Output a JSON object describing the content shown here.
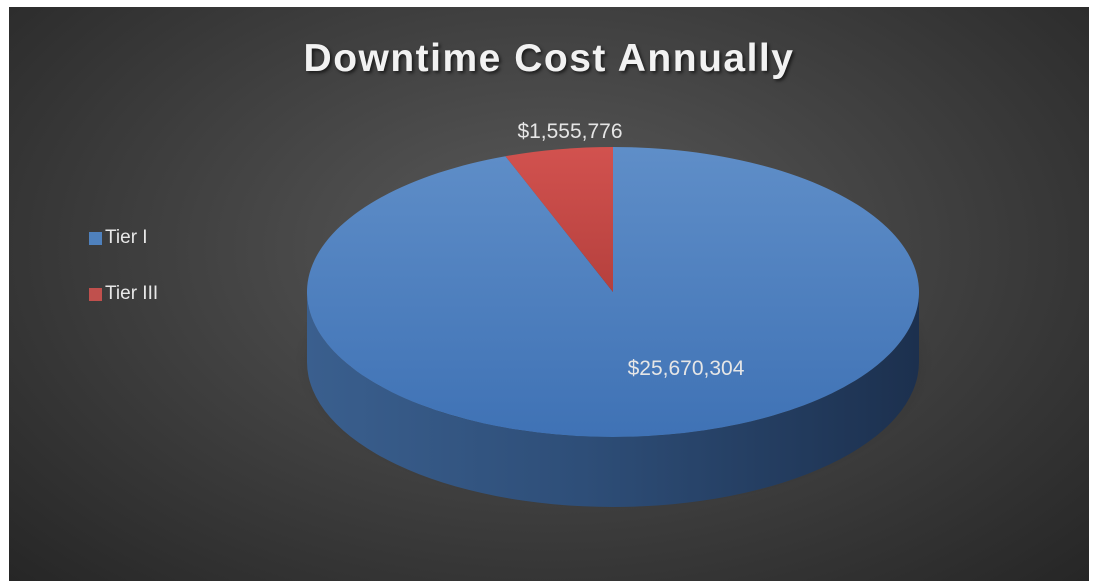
{
  "chart_data": {
    "type": "pie",
    "title": "Downtime Cost Annually",
    "categories": [
      "Tier I",
      "Tier III"
    ],
    "values": [
      25670304,
      1555776
    ],
    "value_labels": [
      "$25,670,304",
      "$1,555,776"
    ],
    "colors": [
      "#4f81bd",
      "#c0504d"
    ],
    "style": "3d",
    "legend_position": "left"
  }
}
